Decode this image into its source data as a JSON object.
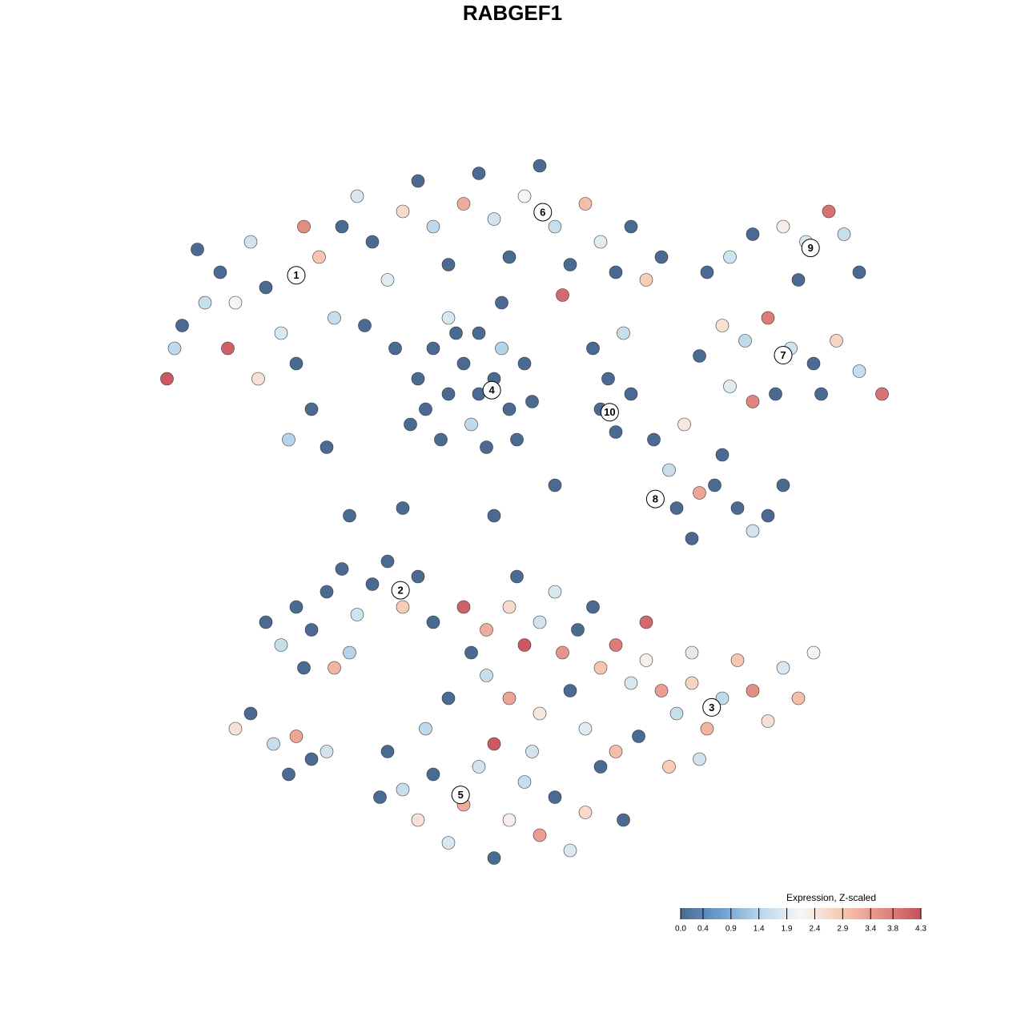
{
  "chart_data": {
    "type": "scatter",
    "title": "RABGEF1",
    "xlim": [
      0,
      100
    ],
    "ylim": [
      0,
      100
    ],
    "colorbar": {
      "title": "Expression, Z-scaled",
      "lim": [
        0,
        4.3
      ],
      "ticks": [
        {
          "value": 0,
          "label": "0.0"
        },
        0.4,
        0.9,
        1.4,
        1.9,
        2.4,
        2.9,
        3.4,
        3.8,
        4.3
      ],
      "colorscale": [
        "#4a6a92",
        "#6b9fcf",
        "#b9d7ea",
        "#f7f7f7",
        "#f7c9b2",
        "#e58e84",
        "#c84f5d"
      ]
    },
    "clusters": [
      {
        "label": "1",
        "x": 20.0,
        "y": 79.6
      },
      {
        "label": "2",
        "x": 33.7,
        "y": 38.2
      },
      {
        "label": "3",
        "x": 74.6,
        "y": 22.8
      },
      {
        "label": "4",
        "x": 45.7,
        "y": 64.5
      },
      {
        "label": "5",
        "x": 41.6,
        "y": 11.3
      },
      {
        "label": "6",
        "x": 52.4,
        "y": 87.9
      },
      {
        "label": "7",
        "x": 84.0,
        "y": 69.1
      },
      {
        "label": "8",
        "x": 67.2,
        "y": 50.2
      },
      {
        "label": "9",
        "x": 87.6,
        "y": 83.2
      },
      {
        "label": "10",
        "x": 61.2,
        "y": 61.6
      }
    ],
    "series": [
      {
        "x": [
          5,
          8,
          4,
          10,
          12,
          7,
          14,
          16,
          18,
          20,
          15,
          22,
          24,
          19,
          25,
          23,
          26,
          28,
          30,
          32,
          29,
          34,
          36,
          38,
          40,
          42,
          44,
          46,
          48,
          50,
          52,
          54,
          56,
          58,
          60,
          62,
          64,
          66,
          68,
          55,
          11,
          3,
          21,
          33,
          40,
          47,
          36,
          38,
          40,
          42,
          44,
          46,
          48,
          50,
          43,
          39,
          45,
          49,
          37,
          41,
          47,
          44,
          35,
          51,
          59,
          61,
          63,
          60,
          62,
          64,
          74,
          77,
          80,
          84,
          87,
          90,
          92,
          94,
          86,
          76,
          79,
          82,
          85,
          88,
          91,
          94,
          97,
          89,
          73,
          77,
          80,
          83,
          67,
          69,
          70,
          72,
          75,
          78,
          80,
          82,
          84,
          76,
          71,
          73,
          16,
          18,
          20,
          22,
          24,
          26,
          28,
          30,
          32,
          34,
          36,
          38,
          21,
          27,
          25,
          42,
          45,
          48,
          50,
          52,
          55,
          57,
          60,
          62,
          64,
          66,
          68,
          70,
          72,
          74,
          76,
          78,
          80,
          82,
          84,
          86,
          88,
          45,
          48,
          52,
          56,
          58,
          62,
          65,
          69,
          73,
          43,
          40,
          54,
          59,
          66,
          72,
          32,
          34,
          36,
          38,
          40,
          42,
          44,
          46,
          48,
          50,
          52,
          54,
          56,
          58,
          60,
          46,
          37,
          31,
          63,
          51,
          12,
          14,
          17,
          20,
          22,
          24,
          19,
          27,
          34,
          46,
          54,
          49
        ],
        "y": [
          73,
          76,
          70,
          80,
          76,
          83,
          84,
          78,
          72,
          68,
          66,
          62,
          57,
          58,
          74,
          82,
          86,
          90,
          84,
          79,
          73,
          88,
          92,
          86,
          81,
          89,
          93,
          87,
          82,
          90,
          94,
          86,
          81,
          89,
          84,
          80,
          86,
          79,
          82,
          77,
          70,
          66,
          86,
          70,
          74,
          76,
          66,
          70,
          64,
          68,
          72,
          66,
          62,
          68,
          60,
          58,
          57,
          58,
          62,
          72,
          70,
          64,
          60,
          63,
          70,
          66,
          72,
          62,
          59,
          64,
          80,
          82,
          85,
          86,
          84,
          88,
          85,
          80,
          79,
          73,
          71,
          74,
          70,
          68,
          71,
          67,
          64,
          64,
          69,
          65,
          63,
          64,
          58,
          54,
          49,
          45,
          52,
          49,
          46,
          48,
          52,
          56,
          60,
          51,
          34,
          31,
          36,
          33,
          38,
          41,
          35,
          39,
          42,
          36,
          40,
          34,
          28,
          30,
          28,
          36,
          33,
          36,
          31,
          34,
          30,
          33,
          28,
          31,
          26,
          29,
          25,
          22,
          26,
          20,
          24,
          29,
          25,
          21,
          28,
          24,
          30,
          27,
          24,
          22,
          25,
          20,
          17,
          19,
          15,
          16,
          30,
          24,
          38,
          36,
          34,
          30,
          17,
          12,
          8,
          14,
          5,
          10,
          15,
          3,
          8,
          13,
          6,
          11,
          4,
          9,
          15,
          18,
          20,
          11,
          8,
          17,
          20,
          22,
          18,
          19,
          16,
          17,
          14,
          48,
          49,
          48,
          52,
          40
        ],
        "values": [
          0,
          1.6,
          1.5,
          0,
          2.1,
          0,
          1.7,
          0,
          1.8,
          0,
          2.5,
          0,
          0,
          1.4,
          1.6,
          2.9,
          0,
          1.8,
          0,
          1.9,
          0,
          2.6,
          0,
          1.5,
          0,
          3.2,
          0,
          1.7,
          0,
          2.2,
          0,
          1.6,
          0,
          3.0,
          1.9,
          0,
          0,
          2.8,
          0,
          4.0,
          4.1,
          4.2,
          3.6,
          0,
          1.8,
          0,
          0,
          0,
          0,
          0,
          0,
          0,
          0,
          0,
          1.5,
          0,
          0,
          0,
          0,
          0,
          1.4,
          0,
          0,
          0,
          0,
          0,
          1.6,
          0,
          0,
          0,
          0,
          1.7,
          0,
          2.3,
          1.8,
          3.9,
          1.6,
          0,
          0,
          2.5,
          1.5,
          3.8,
          1.7,
          0,
          2.7,
          1.6,
          3.9,
          0,
          0,
          1.9,
          3.7,
          0,
          0,
          1.6,
          0,
          0,
          0,
          0,
          1.7,
          0,
          0,
          0,
          2.4,
          3.3,
          0,
          1.6,
          0,
          0,
          0,
          0,
          1.7,
          0,
          0,
          2.8,
          0,
          0,
          0,
          1.4,
          3.1,
          4.1,
          3.2,
          2.6,
          4.2,
          1.7,
          3.5,
          0,
          2.9,
          3.8,
          1.8,
          2.3,
          3.4,
          1.6,
          2.7,
          3.1,
          1.5,
          2.9,
          3.6,
          2.5,
          1.8,
          3.0,
          2.2,
          1.6,
          3.3,
          2.4,
          0,
          1.9,
          3.0,
          0,
          2.8,
          1.7,
          0,
          0,
          1.8,
          0,
          4.0,
          1.9,
          0,
          1.6,
          2.5,
          0,
          1.8,
          3.2,
          1.7,
          0,
          2.3,
          1.6,
          3.4,
          0,
          1.8,
          2.6,
          0,
          4.2,
          1.5,
          0,
          0,
          1.7,
          2.5,
          0,
          1.6,
          3.3,
          0,
          1.7,
          0,
          0,
          0,
          0,
          0,
          0
        ]
      }
    ]
  }
}
